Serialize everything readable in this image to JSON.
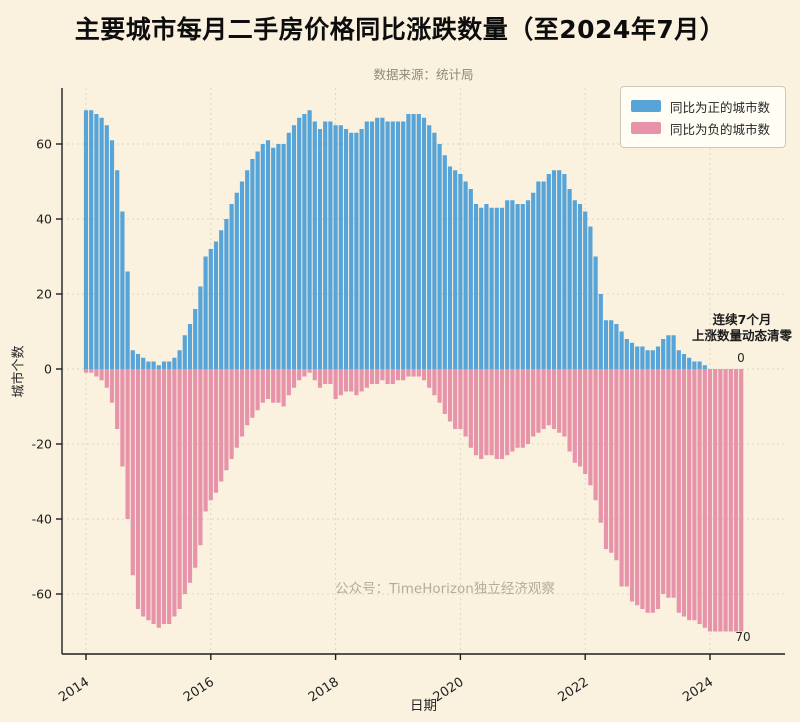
{
  "title": "主要城市每月二手房价格同比涨跌数量（至2024年7月）",
  "subtitle": "数据来源：统计局",
  "watermark": "公众号：TimeHorizon独立经济观察",
  "annotation": {
    "line1": "连续7个月",
    "line2": "上涨数量动态清零",
    "zero_label": "0",
    "seventy_label": "70"
  },
  "colors": {
    "background": "#faf2df",
    "positive_bar": "#57a4d9",
    "negative_bar": "#e793aa",
    "axis": "#1f1f1f",
    "grid": "#ddd6bf",
    "legend_bg": "#fffdf4"
  },
  "chart_data": {
    "type": "bar",
    "title": "主要城市每月二手房价格同比涨跌数量（至2024年7月）",
    "xlabel": "日期",
    "ylabel": "城市个数",
    "start_month": "2014-01",
    "end_month": "2024-07",
    "months_count": 127,
    "ylim": [
      -76,
      74
    ],
    "yticks": [
      60,
      40,
      20,
      0,
      -20,
      -40,
      -60
    ],
    "xticks": [
      {
        "label": "2014",
        "month_index": 0
      },
      {
        "label": "2016",
        "month_index": 24
      },
      {
        "label": "2018",
        "month_index": 48
      },
      {
        "label": "2020",
        "month_index": 72
      },
      {
        "label": "2022",
        "month_index": 96
      },
      {
        "label": "2024",
        "month_index": 120
      }
    ],
    "grid": true,
    "legend_position": "upper right",
    "series": [
      {
        "name": "同比为正的城市数",
        "color": "#57a4d9",
        "values": [
          69,
          69,
          68,
          67,
          65,
          61,
          53,
          42,
          26,
          5,
          4,
          3,
          2,
          2,
          1,
          2,
          2,
          3,
          5,
          9,
          12,
          16,
          22,
          30,
          32,
          34,
          37,
          40,
          44,
          47,
          50,
          53,
          56,
          58,
          60,
          61,
          59,
          60,
          60,
          63,
          65,
          67,
          68,
          69,
          66,
          64,
          66,
          66,
          65,
          65,
          64,
          63,
          63,
          64,
          66,
          66,
          67,
          67,
          66,
          66,
          66,
          66,
          68,
          68,
          68,
          67,
          65,
          63,
          60,
          57,
          54,
          53,
          52,
          50,
          48,
          44,
          43,
          44,
          43,
          43,
          43,
          45,
          45,
          44,
          44,
          45,
          47,
          50,
          50,
          52,
          53,
          53,
          52,
          48,
          45,
          44,
          42,
          38,
          30,
          20,
          13,
          13,
          12,
          10,
          8,
          7,
          6,
          6,
          5,
          5,
          6,
          8,
          9,
          9,
          5,
          4,
          3,
          2,
          2,
          1,
          0,
          0,
          0,
          0,
          0,
          0,
          0
        ]
      },
      {
        "name": "同比为负的城市数",
        "color": "#e793aa",
        "values": [
          -1,
          -1,
          -2,
          -3,
          -5,
          -9,
          -16,
          -26,
          -40,
          -55,
          -64,
          -66,
          -67,
          -68,
          -69,
          -68,
          -68,
          -66,
          -64,
          -60,
          -57,
          -53,
          -47,
          -38,
          -35,
          -33,
          -30,
          -27,
          -24,
          -21,
          -18,
          -15,
          -13,
          -11,
          -9,
          -8,
          -9,
          -9,
          -10,
          -7,
          -5,
          -3,
          -2,
          -1,
          -3,
          -5,
          -4,
          -4,
          -8,
          -7,
          -6,
          -6,
          -7,
          -6,
          -5,
          -4,
          -4,
          -3,
          -4,
          -4,
          -3,
          -3,
          -2,
          -2,
          -2,
          -3,
          -5,
          -7,
          -9,
          -12,
          -14,
          -16,
          -16,
          -18,
          -21,
          -23,
          -24,
          -23,
          -23,
          -24,
          -24,
          -23,
          -22,
          -21,
          -21,
          -20,
          -18,
          -17,
          -16,
          -15,
          -16,
          -17,
          -18,
          -22,
          -25,
          -26,
          -28,
          -31,
          -35,
          -41,
          -48,
          -49,
          -51,
          -58,
          -58,
          -62,
          -63,
          -64,
          -65,
          -65,
          -64,
          -60,
          -61,
          -61,
          -65,
          -66,
          -67,
          -67,
          -68,
          -69,
          -70,
          -70,
          -70,
          -70,
          -70,
          -70,
          -70
        ]
      }
    ]
  }
}
